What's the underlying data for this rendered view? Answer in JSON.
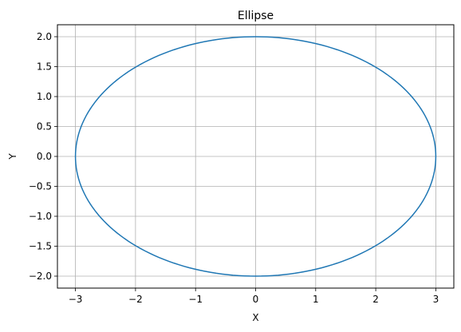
{
  "chart_data": {
    "type": "line",
    "title": "Ellipse",
    "xlabel": "X",
    "ylabel": "Y",
    "xlim": [
      -3.3,
      3.3
    ],
    "ylim": [
      -2.2,
      2.2
    ],
    "xticks": [
      -3,
      -2,
      -1,
      0,
      1,
      2,
      3
    ],
    "yticks": [
      -2.0,
      -1.5,
      -1.0,
      -0.5,
      0.0,
      0.5,
      1.0,
      1.5,
      2.0
    ],
    "xtick_labels": [
      "−3",
      "−2",
      "−1",
      "0",
      "1",
      "2",
      "3"
    ],
    "ytick_labels": [
      "−2.0",
      "−1.5",
      "−1.0",
      "−0.5",
      "0.0",
      "0.5",
      "1.0",
      "1.5",
      "2.0"
    ],
    "grid": true,
    "series": [
      {
        "semi_axis_x": 3,
        "semi_axis_y": 2,
        "center": [
          0,
          0
        ],
        "color": "#1f77b4"
      }
    ]
  }
}
